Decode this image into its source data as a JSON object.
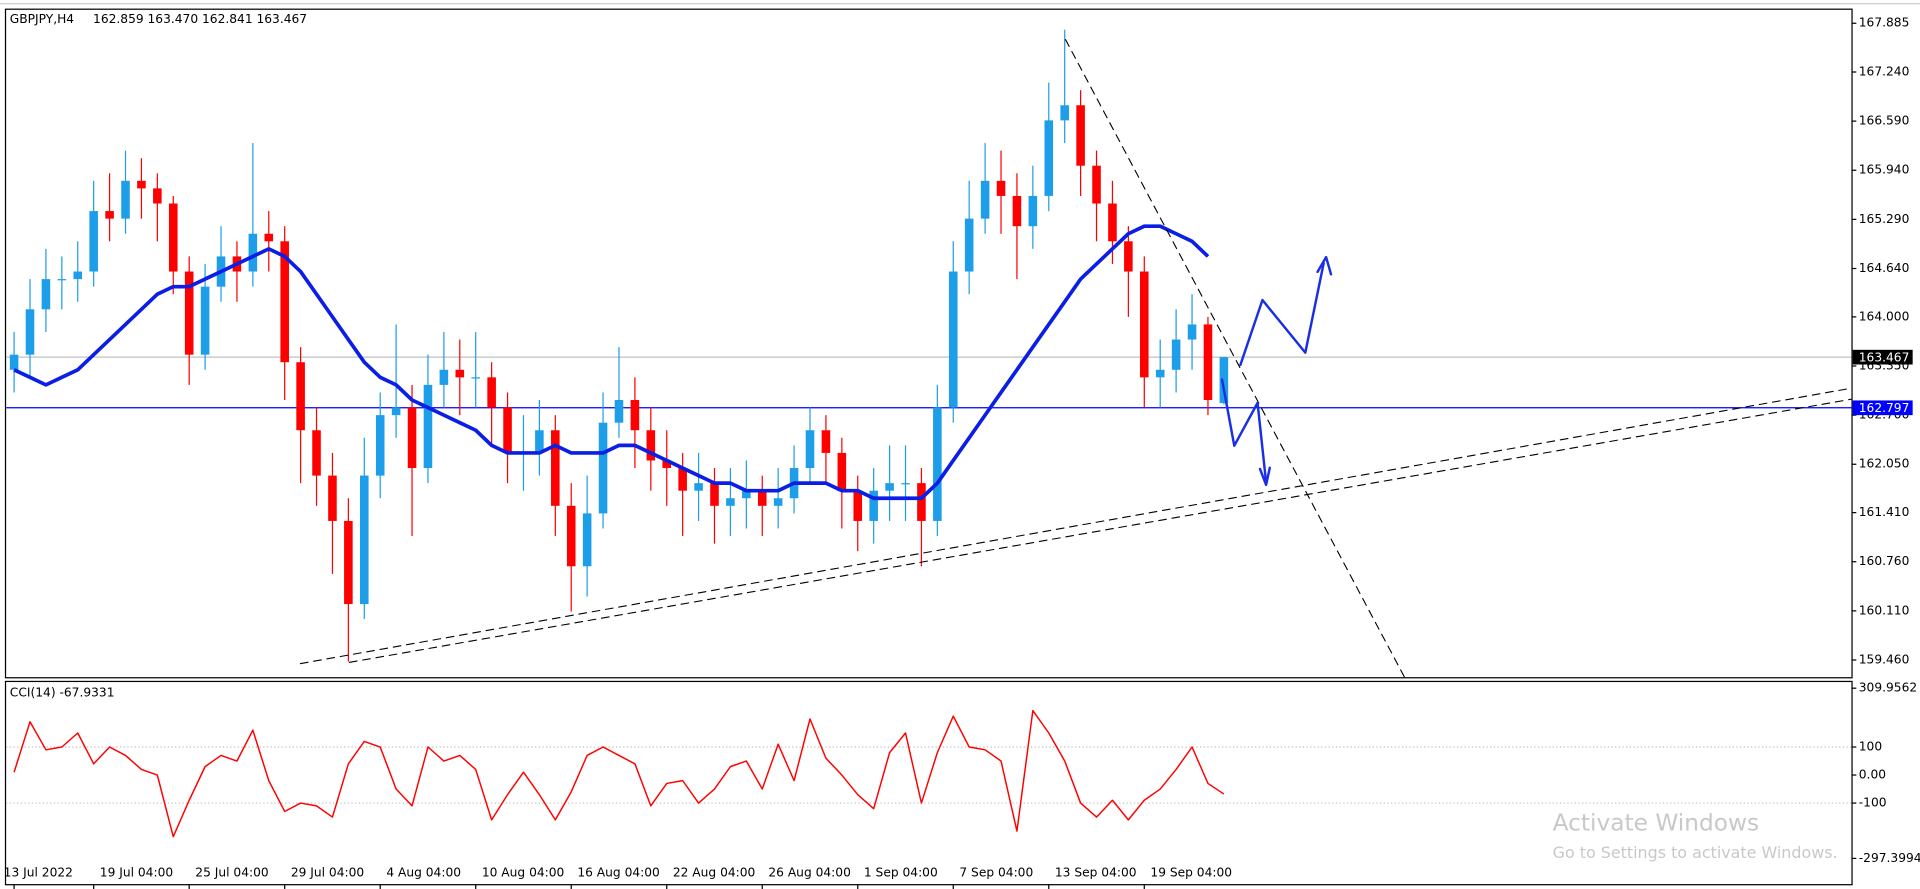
{
  "chart_data": [
    {
      "type": "candlestick",
      "title": "GBPJPY,H4",
      "quote": "162.859 163.470 162.841 163.467",
      "categories": [
        "13 Jul 2022",
        null,
        null,
        null,
        null,
        "19 Jul 04:00",
        null,
        null,
        null,
        null,
        null,
        "25 Jul 04:00",
        null,
        null,
        null,
        null,
        null,
        "29 Jul 04:00",
        null,
        null,
        null,
        null,
        null,
        "4 Aug 04:00",
        null,
        null,
        null,
        null,
        null,
        "10 Aug 04:00",
        null,
        null,
        null,
        null,
        null,
        "16 Aug 04:00",
        null,
        null,
        null,
        null,
        null,
        "22 Aug 04:00",
        null,
        null,
        null,
        null,
        null,
        "26 Aug 04:00",
        null,
        null,
        null,
        null,
        null,
        "1 Sep 04:00",
        null,
        null,
        null,
        null,
        null,
        "7 Sep 04:00",
        null,
        null,
        null,
        null,
        null,
        "13 Sep 04:00",
        null,
        null,
        null,
        null,
        null,
        "19 Sep 04:00",
        null,
        null,
        null,
        null,
        null
      ],
      "open": [
        163.3,
        163.5,
        164.1,
        164.5,
        164.5,
        164.6,
        165.4,
        165.3,
        165.8,
        165.7,
        165.5,
        164.6,
        163.5,
        164.4,
        164.8,
        164.6,
        165.1,
        165.0,
        163.4,
        162.5,
        161.9,
        161.3,
        160.2,
        161.9,
        162.7,
        162.8,
        162.0,
        163.1,
        163.3,
        163.2,
        163.2,
        162.8,
        162.2,
        162.2,
        162.5,
        161.5,
        160.7,
        161.4,
        162.6,
        162.9,
        162.5,
        162.1,
        162.0,
        161.7,
        161.8,
        161.5,
        161.6,
        161.7,
        161.5,
        161.6,
        162.0,
        162.5,
        162.2,
        161.7,
        161.3,
        161.7,
        161.8,
        161.8,
        161.3,
        162.8,
        164.6,
        165.3,
        165.8,
        165.6,
        165.2,
        165.6,
        166.6,
        166.8,
        166.0,
        165.5,
        165.0,
        164.6,
        163.2,
        163.3,
        163.7,
        163.9,
        162.859
      ],
      "high": [
        163.8,
        164.5,
        164.9,
        164.8,
        165.0,
        165.8,
        165.9,
        166.2,
        166.1,
        165.9,
        165.6,
        164.8,
        164.7,
        165.2,
        165.0,
        166.3,
        165.4,
        165.2,
        163.6,
        162.8,
        162.2,
        161.6,
        162.4,
        163.0,
        163.9,
        163.1,
        163.5,
        163.8,
        163.7,
        163.8,
        163.4,
        163.0,
        162.7,
        162.9,
        162.7,
        161.8,
        161.9,
        163.0,
        163.6,
        163.2,
        162.8,
        162.5,
        162.2,
        162.2,
        162.0,
        162.0,
        162.1,
        161.9,
        162.0,
        162.3,
        162.8,
        162.7,
        162.4,
        161.9,
        162.0,
        162.3,
        162.3,
        162.0,
        163.1,
        165.0,
        165.8,
        166.3,
        166.2,
        165.9,
        166.0,
        167.1,
        167.8,
        167.0,
        166.2,
        165.8,
        165.2,
        164.8,
        163.7,
        164.1,
        164.3,
        164.0,
        163.47
      ],
      "low": [
        163.0,
        163.2,
        163.8,
        164.1,
        164.2,
        164.4,
        165.0,
        165.1,
        165.3,
        165.0,
        164.3,
        163.1,
        163.3,
        164.2,
        164.2,
        164.4,
        164.6,
        162.9,
        161.8,
        161.5,
        160.6,
        159.44,
        160.0,
        161.6,
        162.4,
        161.1,
        161.8,
        162.8,
        162.7,
        162.8,
        162.3,
        161.8,
        161.7,
        161.9,
        161.1,
        160.1,
        160.3,
        161.2,
        162.4,
        162.0,
        161.7,
        161.5,
        161.1,
        161.3,
        161.0,
        161.1,
        161.2,
        161.1,
        161.2,
        161.4,
        161.8,
        161.8,
        161.2,
        160.9,
        161.0,
        161.3,
        161.3,
        160.7,
        161.1,
        162.6,
        164.3,
        165.1,
        165.1,
        164.5,
        164.9,
        165.4,
        166.3,
        165.6,
        165.0,
        164.7,
        164.0,
        162.8,
        162.8,
        163.0,
        163.3,
        162.7,
        162.841
      ],
      "close": [
        163.5,
        164.1,
        164.5,
        164.5,
        164.6,
        165.4,
        165.3,
        165.8,
        165.7,
        165.5,
        164.6,
        163.5,
        164.4,
        164.8,
        164.6,
        165.1,
        165.0,
        163.4,
        162.5,
        161.9,
        161.3,
        160.2,
        161.9,
        162.7,
        162.8,
        162.0,
        163.1,
        163.3,
        163.2,
        163.2,
        162.8,
        162.2,
        162.2,
        162.5,
        161.5,
        160.7,
        161.4,
        162.6,
        162.9,
        162.5,
        162.1,
        162.0,
        161.7,
        161.8,
        161.5,
        161.6,
        161.7,
        161.5,
        161.6,
        162.0,
        162.5,
        162.2,
        161.7,
        161.3,
        161.7,
        161.8,
        161.8,
        161.3,
        162.8,
        164.6,
        165.3,
        165.8,
        165.6,
        165.2,
        165.6,
        166.6,
        166.8,
        166.0,
        165.5,
        165.0,
        164.6,
        163.2,
        163.3,
        163.7,
        163.9,
        162.9,
        163.467
      ],
      "up_color": "#1e9ee8",
      "down_color": "#ff0000",
      "ma": {
        "color": "#0a1ee6",
        "values": [
          163.3,
          163.2,
          163.1,
          163.2,
          163.3,
          163.5,
          163.7,
          163.9,
          164.1,
          164.3,
          164.4,
          164.4,
          164.5,
          164.6,
          164.7,
          164.8,
          164.9,
          164.8,
          164.6,
          164.3,
          164.0,
          163.7,
          163.4,
          163.2,
          163.1,
          162.9,
          162.8,
          162.7,
          162.6,
          162.5,
          162.3,
          162.2,
          162.2,
          162.2,
          162.3,
          162.2,
          162.2,
          162.2,
          162.3,
          162.3,
          162.2,
          162.1,
          162.0,
          161.9,
          161.8,
          161.8,
          161.7,
          161.7,
          161.7,
          161.8,
          161.8,
          161.8,
          161.7,
          161.7,
          161.6,
          161.6,
          161.6,
          161.6,
          161.8,
          162.1,
          162.4,
          162.7,
          163.0,
          163.3,
          163.6,
          163.9,
          164.2,
          164.5,
          164.7,
          164.9,
          165.1,
          165.2,
          165.2,
          165.1,
          165.0,
          164.8,
          null
        ]
      },
      "price_lines": [
        {
          "value": 163.467,
          "color": "#c0c0c0",
          "badge_color": "#000000"
        },
        {
          "value": 162.797,
          "color": "#0000ff",
          "badge_color": "#0000ff"
        }
      ],
      "ylim": [
        159.233,
        168.063
      ],
      "yticks": [
        {
          "value": 167.885,
          "label": "167.885"
        },
        {
          "value": 167.24,
          "label": "167.240"
        },
        {
          "value": 166.59,
          "label": "166.590"
        },
        {
          "value": 165.94,
          "label": "165.940"
        },
        {
          "value": 165.29,
          "label": "165.290"
        },
        {
          "value": 164.64,
          "label": "164.640"
        },
        {
          "value": 164.0,
          "label": "164.000"
        },
        {
          "value": 163.35,
          "label": "163.350"
        },
        {
          "value": 162.7,
          "label": "162.700"
        },
        {
          "value": 162.05,
          "label": "162.050"
        },
        {
          "value": 161.41,
          "label": "161.410"
        },
        {
          "value": 160.76,
          "label": "160.760"
        },
        {
          "value": 160.11,
          "label": "160.110"
        },
        {
          "value": 159.46,
          "label": "159.460"
        }
      ]
    },
    {
      "type": "line",
      "title": "CCI(14) -67.9331",
      "color": "#ff0000",
      "values": [
        10,
        190,
        90,
        100,
        150,
        40,
        100,
        70,
        20,
        0,
        -220,
        -90,
        30,
        70,
        50,
        160,
        -20,
        -130,
        -100,
        -110,
        -150,
        40,
        120,
        100,
        -50,
        -110,
        100,
        50,
        70,
        20,
        -160,
        -70,
        10,
        -70,
        -160,
        -60,
        70,
        100,
        70,
        40,
        -110,
        -30,
        -20,
        -100,
        -50,
        30,
        50,
        -50,
        110,
        -20,
        200,
        60,
        0,
        -70,
        -120,
        80,
        150,
        -100,
        80,
        210,
        100,
        90,
        50,
        -200,
        230,
        150,
        50,
        -100,
        -150,
        -90,
        -160,
        -90,
        -50,
        20,
        100,
        -30,
        -67.9331
      ],
      "levels": [
        100,
        -100
      ],
      "ylim": [
        -297.3994,
        309.9562
      ],
      "yticks": [
        309.9562,
        100,
        {
          "value": 0,
          "label": "0.00"
        },
        -100,
        -297.3994
      ]
    }
  ],
  "watermark": {
    "title": "Activate Windows",
    "subtitle": "Go to Settings to activate Windows."
  }
}
